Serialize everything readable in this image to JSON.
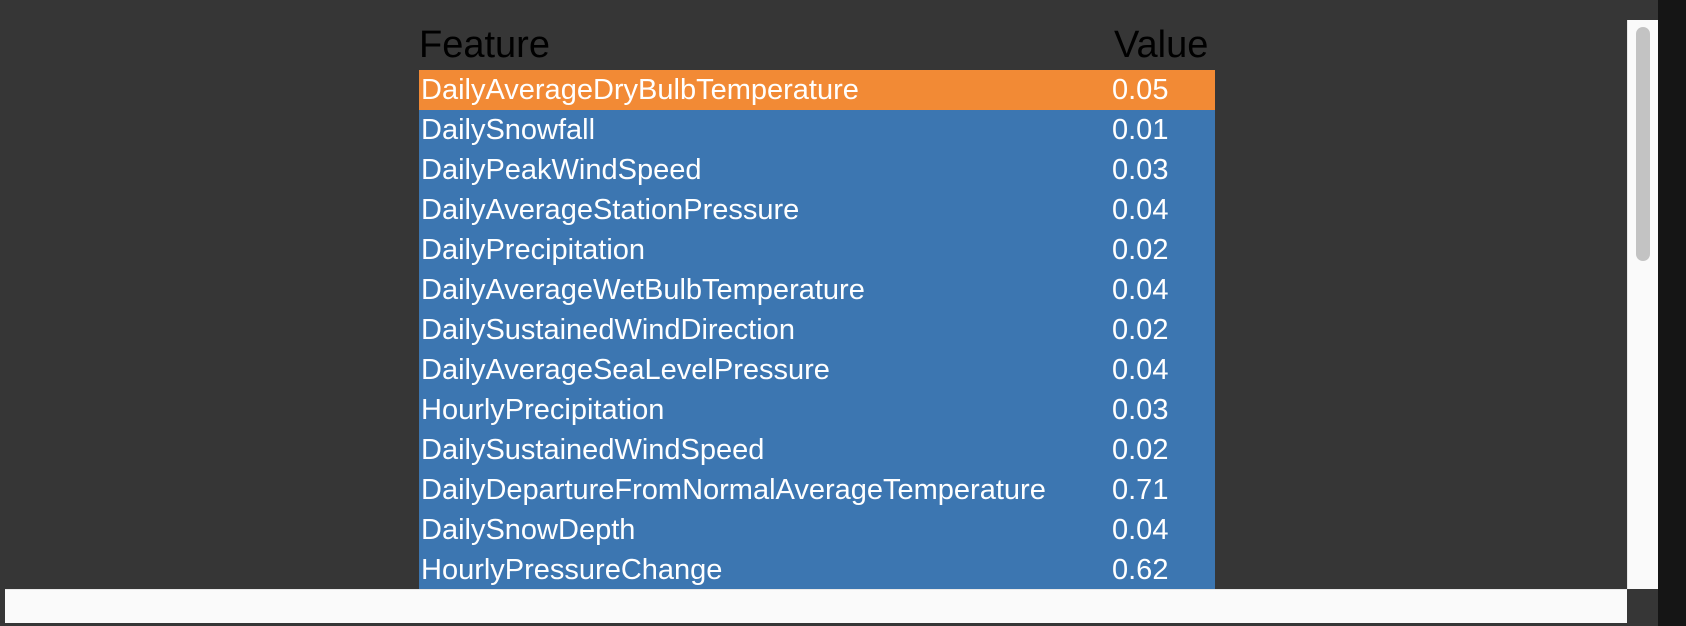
{
  "table": {
    "headers": {
      "feature": "Feature",
      "value": "Value"
    },
    "rows": [
      {
        "feature": "DailyAverageDryBulbTemperature",
        "value": "0.05",
        "highlighted": true
      },
      {
        "feature": "DailySnowfall",
        "value": "0.01"
      },
      {
        "feature": "DailyPeakWindSpeed",
        "value": "0.03"
      },
      {
        "feature": "DailyAverageStationPressure",
        "value": "0.04"
      },
      {
        "feature": "DailyPrecipitation",
        "value": "0.02"
      },
      {
        "feature": "DailyAverageWetBulbTemperature",
        "value": "0.04"
      },
      {
        "feature": "DailySustainedWindDirection",
        "value": "0.02"
      },
      {
        "feature": "DailyAverageSeaLevelPressure",
        "value": "0.04"
      },
      {
        "feature": "HourlyPrecipitation",
        "value": "0.03"
      },
      {
        "feature": "DailySustainedWindSpeed",
        "value": "0.02"
      },
      {
        "feature": "DailyDepartureFromNormalAverageTemperature",
        "value": "0.71"
      },
      {
        "feature": "DailySnowDepth",
        "value": "0.04"
      },
      {
        "feature": "HourlyPressureChange",
        "value": "0.62"
      }
    ]
  },
  "colors": {
    "row_background": "#3c76b1",
    "highlight_background": "#f28a35",
    "page_background": "#363636"
  }
}
